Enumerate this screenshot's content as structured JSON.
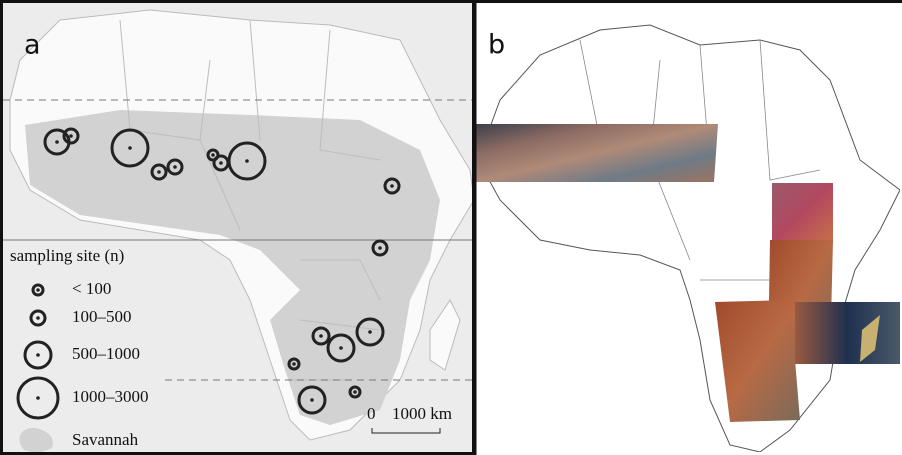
{
  "panel_a": {
    "label": "a",
    "legend": {
      "title": "sampling site (n)",
      "sizes": [
        "< 100",
        "100–500",
        "500–1000",
        "1000–3000"
      ],
      "area": "Savannah"
    },
    "scale_bar": {
      "start": "0",
      "end": "1000 km"
    }
  },
  "panel_b": {
    "label": "b"
  }
}
